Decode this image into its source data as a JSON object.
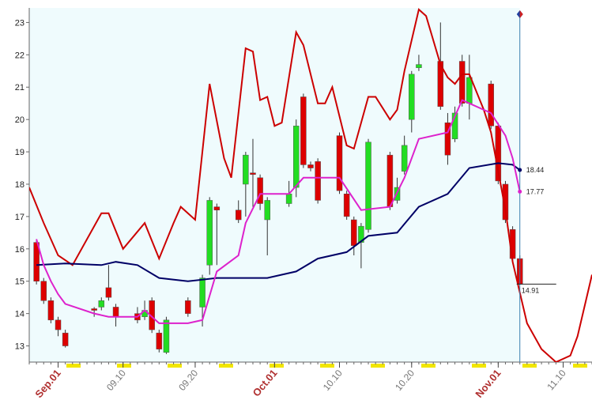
{
  "chart_data": {
    "type": "candlestick",
    "xlim": [
      "08.28",
      "11.14"
    ],
    "ylim": [
      12.5,
      23.45
    ],
    "yticks": [
      13,
      14,
      15,
      16,
      17,
      18,
      19,
      20,
      21,
      22,
      23
    ],
    "xticks": [
      {
        "value": "09.01",
        "label": "Sep.01"
      },
      {
        "value": "09.10",
        "label": "09.10"
      },
      {
        "value": "09.20",
        "label": "09.20"
      },
      {
        "value": "10.01",
        "label": "Oct.01"
      },
      {
        "value": "10.10",
        "label": "10.10"
      },
      {
        "value": "10.20",
        "label": "10.20"
      },
      {
        "value": "11.01",
        "label": "Nov.01"
      },
      {
        "value": "11.10",
        "label": "11.10"
      }
    ],
    "up_color": "#22dd22",
    "down_color": "#dd0000",
    "candles": {
      "x": [
        "08.29",
        "08.30",
        "08.31",
        "09.01",
        "09.02",
        "09.06",
        "09.07",
        "09.08",
        "09.09",
        "09.12",
        "09.13",
        "09.14",
        "09.15",
        "09.16",
        "09.19",
        "09.21",
        "09.22",
        "09.23",
        "09.26",
        "09.27",
        "09.28",
        "09.29",
        "09.30",
        "10.03",
        "10.04",
        "10.05",
        "10.06",
        "10.07",
        "10.10",
        "10.11",
        "10.12",
        "10.13",
        "10.14",
        "10.17",
        "10.18",
        "10.19",
        "10.20",
        "10.21",
        "10.24",
        "10.25",
        "10.26",
        "10.27",
        "10.28",
        "10.31",
        "11.01",
        "11.02",
        "11.03",
        "11.04"
      ],
      "open": [
        16.2,
        15.0,
        14.4,
        13.8,
        13.4,
        14.15,
        14.2,
        14.8,
        14.2,
        14.0,
        13.9,
        14.4,
        13.4,
        12.8,
        14.4,
        14.2,
        15.5,
        17.3,
        17.2,
        18.0,
        18.35,
        18.2,
        16.9,
        17.4,
        17.9,
        20.7,
        18.6,
        18.7,
        19.5,
        17.7,
        16.9,
        16.2,
        16.6,
        18.9,
        17.5,
        18.4,
        20.0,
        21.6,
        21.8,
        19.9,
        19.4,
        21.8,
        20.5,
        21.1,
        19.8,
        18.0,
        16.6,
        15.7
      ],
      "high": [
        16.3,
        15.1,
        14.5,
        13.9,
        13.5,
        14.2,
        14.5,
        15.5,
        14.3,
        14.2,
        14.4,
        14.5,
        13.5,
        13.9,
        14.5,
        15.2,
        17.6,
        17.4,
        17.5,
        19.0,
        19.4,
        18.3,
        17.6,
        18.1,
        20.0,
        20.8,
        18.7,
        18.8,
        19.6,
        17.8,
        17.0,
        16.8,
        19.4,
        19.0,
        18.2,
        19.5,
        21.5,
        22.0,
        23.0,
        20.2,
        20.4,
        22.0,
        22.0,
        21.2,
        19.9,
        18.1,
        16.7,
        15.8
      ],
      "low": [
        14.9,
        14.3,
        13.7,
        13.3,
        12.95,
        13.9,
        14.1,
        14.4,
        13.6,
        13.7,
        13.8,
        13.4,
        12.8,
        12.75,
        13.9,
        13.6,
        15.2,
        15.5,
        16.8,
        17.0,
        17.3,
        17.2,
        15.8,
        17.3,
        17.6,
        18.5,
        18.4,
        17.4,
        17.7,
        16.9,
        15.8,
        15.4,
        16.5,
        17.2,
        17.4,
        18.3,
        19.6,
        21.5,
        20.3,
        18.6,
        19.3,
        20.4,
        20.0,
        19.7,
        18.0,
        16.8,
        15.6,
        14.9
      ],
      "close": [
        15.0,
        14.4,
        13.8,
        13.5,
        13.0,
        14.1,
        14.4,
        14.5,
        13.9,
        13.8,
        14.1,
        13.5,
        12.9,
        13.8,
        14.0,
        15.1,
        17.5,
        17.2,
        16.9,
        18.9,
        18.3,
        17.4,
        17.5,
        17.7,
        19.8,
        18.6,
        18.5,
        17.5,
        17.8,
        17.0,
        16.1,
        16.7,
        19.3,
        17.3,
        17.9,
        19.2,
        21.4,
        21.7,
        20.4,
        18.9,
        20.2,
        20.5,
        21.3,
        19.8,
        18.1,
        16.9,
        15.7,
        14.91
      ]
    },
    "series": [
      {
        "color": "#cc0000",
        "x": [
          "08.28",
          "08.30",
          "09.01",
          "09.03",
          "09.07",
          "09.08",
          "09.10",
          "09.13",
          "09.15",
          "09.17",
          "09.18",
          "09.20",
          "09.22",
          "09.24",
          "09.25",
          "09.27",
          "09.28",
          "09.29",
          "09.30",
          "10.01",
          "10.02",
          "10.04",
          "10.05",
          "10.07",
          "10.08",
          "10.09",
          "10.11",
          "10.12",
          "10.14",
          "10.15",
          "10.17",
          "10.18",
          "10.19",
          "10.21",
          "10.22",
          "10.24",
          "10.25",
          "10.26",
          "10.27",
          "10.28",
          "10.30",
          "10.31",
          "11.02",
          "11.03",
          "11.05",
          "11.07",
          "11.09",
          "11.11",
          "11.12",
          "11.14"
        ],
        "values": [
          17.9,
          16.8,
          15.8,
          15.5,
          17.1,
          17.1,
          16.0,
          16.8,
          15.7,
          16.8,
          17.3,
          16.9,
          21.1,
          18.8,
          18.2,
          22.2,
          22.1,
          20.6,
          20.7,
          19.8,
          19.9,
          22.7,
          22.3,
          20.5,
          20.5,
          21.0,
          19.2,
          19.1,
          20.7,
          20.7,
          20.0,
          20.3,
          21.5,
          23.4,
          23.2,
          21.7,
          21.3,
          21.1,
          21.4,
          21.4,
          20.3,
          19.6,
          17.2,
          15.6,
          13.7,
          12.9,
          12.5,
          12.7,
          13.3,
          15.2
        ]
      },
      {
        "color": "#000066",
        "x": [
          "08.29",
          "09.02",
          "09.07",
          "09.09",
          "09.12",
          "09.15",
          "09.19",
          "09.21",
          "09.23",
          "09.30",
          "10.04",
          "10.07",
          "10.11",
          "10.14",
          "10.18",
          "10.21",
          "10.25",
          "10.28",
          "11.01",
          "11.03",
          "11.04"
        ],
        "values": [
          15.5,
          15.55,
          15.5,
          15.6,
          15.5,
          15.1,
          15.0,
          15.05,
          15.1,
          15.1,
          15.3,
          15.7,
          15.9,
          16.4,
          16.5,
          17.3,
          17.7,
          18.5,
          18.65,
          18.6,
          18.44
        ]
      },
      {
        "color": "#dd22cc",
        "x": [
          "08.29",
          "08.30",
          "08.31",
          "09.01",
          "09.02",
          "09.06",
          "09.08",
          "09.12",
          "09.13",
          "09.15",
          "09.19",
          "09.21",
          "09.23",
          "09.26",
          "09.27",
          "09.29",
          "10.03",
          "10.05",
          "10.10",
          "10.13",
          "10.17",
          "10.19",
          "10.21",
          "10.25",
          "10.27",
          "10.28",
          "10.31",
          "11.02",
          "11.03",
          "11.04"
        ],
        "values": [
          16.3,
          15.5,
          15.0,
          14.6,
          14.3,
          14.0,
          13.9,
          13.9,
          14.1,
          13.7,
          13.7,
          13.8,
          15.3,
          15.8,
          16.8,
          17.7,
          17.7,
          18.2,
          18.2,
          17.2,
          17.3,
          18.2,
          19.4,
          19.6,
          20.6,
          20.5,
          20.2,
          19.5,
          18.8,
          17.77
        ]
      }
    ]
  }
}
